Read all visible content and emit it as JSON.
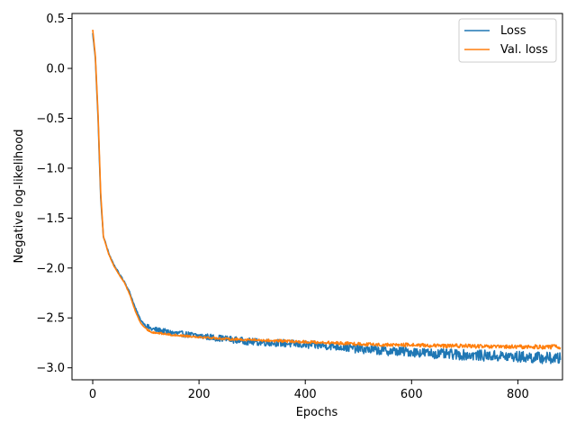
{
  "chart_data": {
    "type": "line",
    "title": "",
    "xlabel": "Epochs",
    "ylabel": "Negative log-likelihood",
    "xlim": [
      -39,
      884
    ],
    "ylim": [
      -3.12,
      0.55
    ],
    "xticks": [
      0,
      200,
      400,
      600,
      800
    ],
    "yticks": [
      0.5,
      0.0,
      -0.5,
      -1.0,
      -1.5,
      -2.0,
      -2.5,
      -3.0
    ],
    "xtick_labels": [
      "0",
      "200",
      "400",
      "600",
      "800"
    ],
    "ytick_labels": [
      "0.5",
      "0.0",
      "−0.5",
      "−1.0",
      "−1.5",
      "−2.0",
      "−2.5",
      "−3.0"
    ],
    "grid": false,
    "legend_position": "upper right",
    "series": [
      {
        "name": "Loss",
        "color": "#1f77b4",
        "x": [
          0,
          5,
          10,
          15,
          20,
          30,
          40,
          50,
          60,
          70,
          80,
          90,
          100,
          110,
          120,
          150,
          200,
          250,
          300,
          350,
          400,
          450,
          500,
          550,
          600,
          650,
          700,
          750,
          800,
          850,
          880
        ],
        "y": [
          0.35,
          0.1,
          -0.5,
          -1.3,
          -1.68,
          -1.85,
          -1.97,
          -2.06,
          -2.14,
          -2.25,
          -2.4,
          -2.52,
          -2.58,
          -2.61,
          -2.62,
          -2.65,
          -2.68,
          -2.71,
          -2.74,
          -2.75,
          -2.77,
          -2.78,
          -2.81,
          -2.83,
          -2.84,
          -2.86,
          -2.87,
          -2.88,
          -2.89,
          -2.9,
          -2.91
        ],
        "noise": 0.022
      },
      {
        "name": "Val. loss",
        "color": "#ff7f0e",
        "x": [
          0,
          5,
          10,
          15,
          20,
          30,
          40,
          50,
          60,
          70,
          80,
          90,
          100,
          110,
          120,
          150,
          200,
          250,
          300,
          350,
          400,
          450,
          500,
          550,
          600,
          650,
          700,
          750,
          800,
          850,
          880
        ],
        "y": [
          0.39,
          0.12,
          -0.45,
          -1.25,
          -1.68,
          -1.86,
          -1.98,
          -2.07,
          -2.15,
          -2.27,
          -2.43,
          -2.55,
          -2.61,
          -2.64,
          -2.65,
          -2.67,
          -2.69,
          -2.71,
          -2.72,
          -2.73,
          -2.74,
          -2.75,
          -2.76,
          -2.77,
          -2.77,
          -2.78,
          -2.78,
          -2.79,
          -2.79,
          -2.79,
          -2.79
        ],
        "noise": 0.008
      }
    ]
  }
}
